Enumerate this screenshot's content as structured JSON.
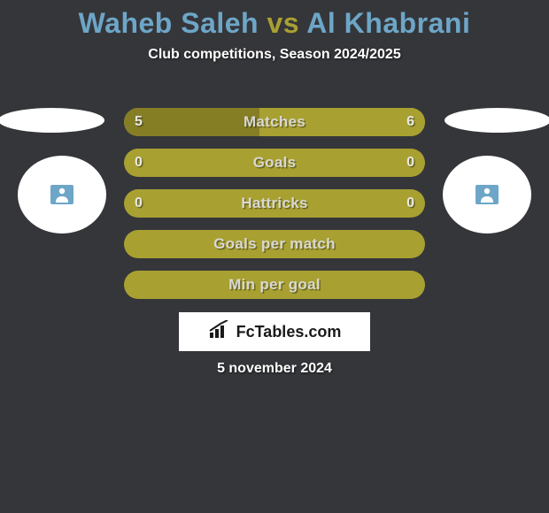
{
  "title": {
    "p1": "Waheb Saleh",
    "vs": "vs",
    "p2": "Al Khabrani",
    "p1_color": "#6da6c7",
    "vs_color": "#a8a031",
    "p2_color": "#6da6c7"
  },
  "subtitle": "Club competitions, Season 2024/2025",
  "player_icon_bg": "#6da6c7",
  "player_icon_fg": "#ffffff",
  "stats": {
    "row_bg_empty": "#a8a031",
    "rows": [
      {
        "label": "Matches",
        "left_val": "5",
        "right_val": "6",
        "left_pct": 45,
        "right_pct": 55,
        "left_color": "#857e25",
        "right_color": "#a8a031"
      },
      {
        "label": "Goals",
        "left_val": "0",
        "right_val": "0",
        "left_pct": 0,
        "right_pct": 0,
        "left_color": "#857e25",
        "right_color": "#a8a031"
      },
      {
        "label": "Hattricks",
        "left_val": "0",
        "right_val": "0",
        "left_pct": 0,
        "right_pct": 0,
        "left_color": "#857e25",
        "right_color": "#a8a031"
      },
      {
        "label": "Goals per match",
        "left_val": "",
        "right_val": "",
        "left_pct": 0,
        "right_pct": 0,
        "left_color": "#857e25",
        "right_color": "#a8a031"
      },
      {
        "label": "Min per goal",
        "left_val": "",
        "right_val": "",
        "left_pct": 0,
        "right_pct": 0,
        "left_color": "#857e25",
        "right_color": "#a8a031"
      }
    ]
  },
  "logo_text": "FcTables.com",
  "date": "5 november 2024",
  "background_color": "#35363a"
}
